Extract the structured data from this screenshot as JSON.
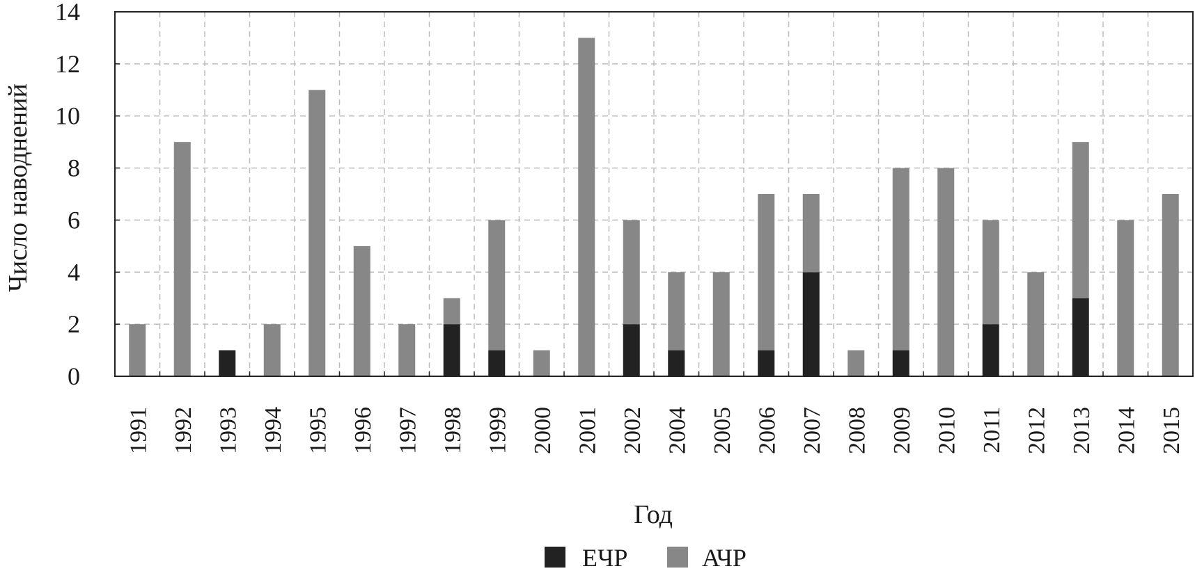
{
  "chart_data": {
    "type": "bar",
    "stacked": true,
    "xlabel": "Год",
    "ylabel": "Число наводнений",
    "ylim": [
      0,
      14
    ],
    "yticks": [
      0,
      2,
      4,
      6,
      8,
      10,
      12,
      14
    ],
    "grid": true,
    "legend_position": "bottom",
    "categories": [
      "1991",
      "1992",
      "1993",
      "1994",
      "1995",
      "1996",
      "1997",
      "1998",
      "1999",
      "2000",
      "2001",
      "2002",
      "2004",
      "2005",
      "2006",
      "2007",
      "2008",
      "2009",
      "2010",
      "2011",
      "2012",
      "2013",
      "2014",
      "2015"
    ],
    "series": [
      {
        "name": "ЕЧР",
        "color": "#222222",
        "values": [
          0,
          0,
          1,
          0,
          0,
          0,
          0,
          2,
          1,
          0,
          0,
          2,
          1,
          0,
          1,
          4,
          0,
          1,
          0,
          2,
          0,
          3,
          0,
          0
        ]
      },
      {
        "name": "АЧР",
        "color": "#878787",
        "values": [
          2,
          9,
          0,
          2,
          11,
          5,
          2,
          1,
          5,
          1,
          13,
          4,
          3,
          4,
          6,
          3,
          1,
          7,
          8,
          4,
          4,
          6,
          6,
          7
        ]
      }
    ]
  }
}
